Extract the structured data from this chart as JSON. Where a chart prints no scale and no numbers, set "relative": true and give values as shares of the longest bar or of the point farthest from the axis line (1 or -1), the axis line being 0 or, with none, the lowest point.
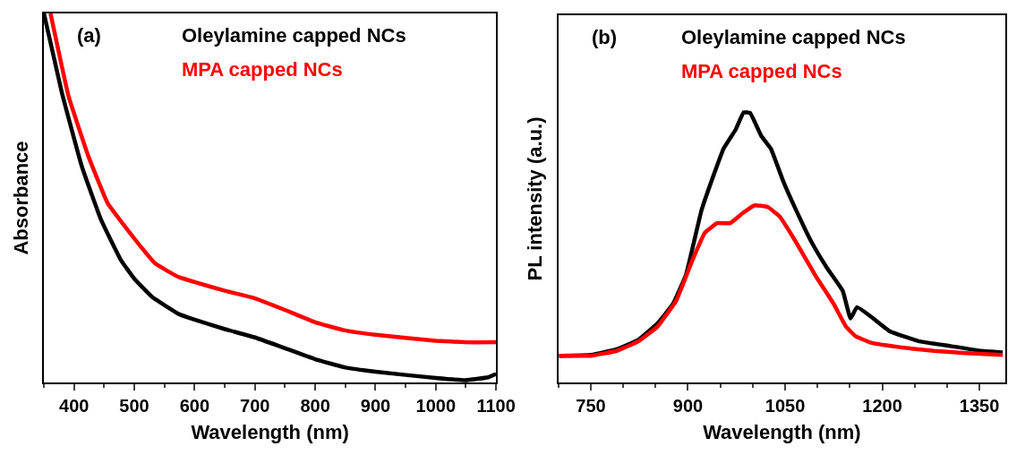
{
  "chart_data": [
    {
      "type": "line",
      "title": "(a)",
      "xlabel": "Wavelength (nm)",
      "ylabel": "Absorbance",
      "relative": true,
      "xlim": [
        350,
        1100
      ],
      "xticks": [
        400,
        500,
        600,
        700,
        800,
        900,
        1000,
        1100
      ],
      "line_style": "solid",
      "series": [
        {
          "name": "Oleylamine capped NCs",
          "color": "#000000",
          "x": [
            350,
            380,
            413,
            445,
            478,
            500,
            530,
            573,
            600,
            649,
            700,
            746,
            800,
            849,
            900,
            1000,
            1049,
            1087,
            1100
          ],
          "values": [
            1.0,
            0.784,
            0.585,
            0.44,
            0.331,
            0.281,
            0.231,
            0.186,
            0.17,
            0.145,
            0.122,
            0.095,
            0.063,
            0.041,
            0.029,
            0.012,
            0.006,
            0.014,
            0.023
          ]
        },
        {
          "name": "MPA capped NCs",
          "color": "#ff0000",
          "x": [
            361,
            391,
            424,
            456,
            500,
            535,
            573,
            600,
            649,
            700,
            746,
            800,
            849,
            900,
            1000,
            1049,
            1100
          ],
          "values": [
            1.0,
            0.775,
            0.612,
            0.485,
            0.39,
            0.322,
            0.286,
            0.272,
            0.249,
            0.228,
            0.199,
            0.163,
            0.141,
            0.129,
            0.113,
            0.109,
            0.109
          ]
        }
      ]
    },
    {
      "type": "line",
      "title": "(b)",
      "xlabel": "Wavelength (nm)",
      "ylabel": "PL intensity (a.u.)",
      "relative": true,
      "xlim": [
        700,
        1390
      ],
      "xticks": [
        750,
        900,
        1050,
        1200,
        1350
      ],
      "line_style": "solid",
      "series": [
        {
          "name": "Oleylamine capped NCs",
          "color": "#000000",
          "x": [
            701,
            751,
            790,
            824,
            853,
            877,
            897,
            921,
            940,
            955,
            974,
            986,
            996,
            1013,
            1028,
            1047,
            1067,
            1091,
            1115,
            1139,
            1151,
            1161,
            1183,
            1212,
            1256,
            1304,
            1353,
            1386
          ],
          "values": [
            0.099,
            0.102,
            0.123,
            0.159,
            0.219,
            0.291,
            0.399,
            0.638,
            0.77,
            0.866,
            0.938,
            1.0,
            0.998,
            0.914,
            0.866,
            0.746,
            0.638,
            0.519,
            0.423,
            0.339,
            0.237,
            0.279,
            0.243,
            0.189,
            0.153,
            0.135,
            0.117,
            0.111
          ]
        },
        {
          "name": "MPA capped NCs",
          "color": "#ff0000",
          "x": [
            701,
            751,
            790,
            824,
            853,
            882,
            906,
            926,
            945,
            965,
            984,
            1003,
            1023,
            1042,
            1067,
            1096,
            1125,
            1144,
            1159,
            1183,
            1232,
            1280,
            1329,
            1386
          ],
          "values": [
            0.099,
            0.099,
            0.117,
            0.153,
            0.207,
            0.303,
            0.447,
            0.554,
            0.59,
            0.59,
            0.626,
            0.656,
            0.65,
            0.614,
            0.519,
            0.399,
            0.291,
            0.207,
            0.171,
            0.147,
            0.129,
            0.117,
            0.109,
            0.102
          ]
        }
      ]
    }
  ]
}
